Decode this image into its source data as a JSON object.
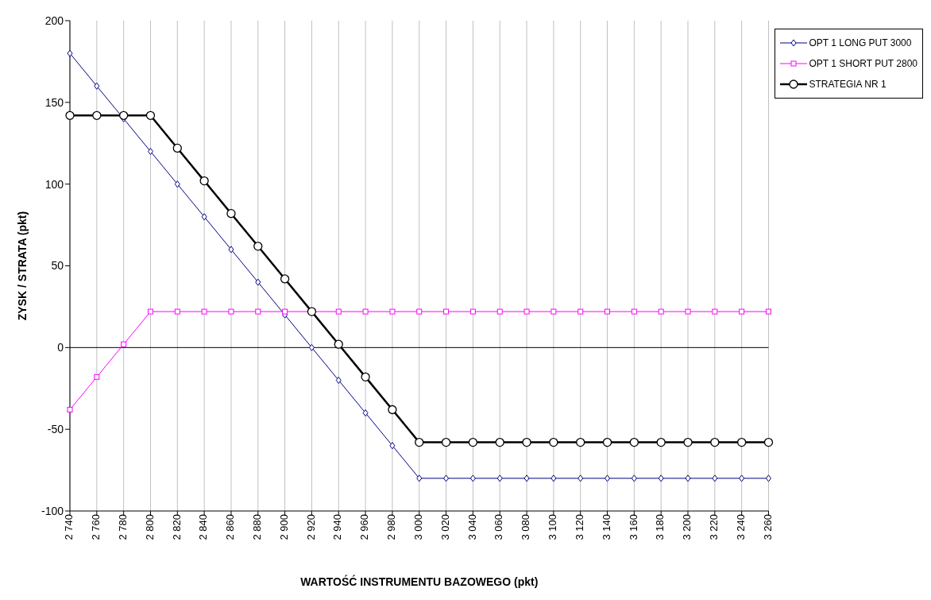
{
  "chart_data": {
    "type": "line",
    "xlabel": "WARTOŚĆ INSTRUMENTU BAZOWEGO (pkt)",
    "ylabel": "ZYSK / STRATA (pkt)",
    "categories": [
      "2 740",
      "2 760",
      "2 780",
      "2 800",
      "2 820",
      "2 840",
      "2 860",
      "2 880",
      "2 900",
      "2 920",
      "2 940",
      "2 960",
      "2 980",
      "3 000",
      "3 020",
      "3 040",
      "3 060",
      "3 080",
      "3 100",
      "3 120",
      "3 140",
      "3 160",
      "3 180",
      "3 200",
      "3 220",
      "3 240",
      "3 260"
    ],
    "series": [
      {
        "name": "OPT 1 LONG PUT 3000",
        "color": "#000080",
        "marker": "diamond",
        "values": [
          180,
          160,
          140,
          120,
          100,
          80,
          60,
          40,
          20,
          0,
          -20,
          -40,
          -60,
          -80,
          -80,
          -80,
          -80,
          -80,
          -80,
          -80,
          -80,
          -80,
          -80,
          -80,
          -80,
          -80,
          -80
        ]
      },
      {
        "name": "OPT 1 SHORT PUT 2800",
        "color": "#ff00ff",
        "marker": "square",
        "values": [
          -38,
          -18,
          2,
          22,
          22,
          22,
          22,
          22,
          22,
          22,
          22,
          22,
          22,
          22,
          22,
          22,
          22,
          22,
          22,
          22,
          22,
          22,
          22,
          22,
          22,
          22,
          22
        ]
      },
      {
        "name": "STRATEGIA NR 1",
        "color": "#000000",
        "marker": "circle",
        "values": [
          142,
          142,
          142,
          142,
          122,
          102,
          82,
          62,
          42,
          22,
          2,
          -18,
          -38,
          -58,
          -58,
          -58,
          -58,
          -58,
          -58,
          -58,
          -58,
          -58,
          -58,
          -58,
          -58,
          -58,
          -58
        ]
      }
    ],
    "ylim": [
      -100,
      200
    ],
    "yticks": [
      -100,
      -50,
      0,
      50,
      100,
      150,
      200
    ],
    "grid": "x",
    "legend": "top right",
    "line_style": "solid",
    "ref_lines": [
      {
        "axis": "y",
        "value": 0,
        "color": "#000000"
      }
    ]
  }
}
